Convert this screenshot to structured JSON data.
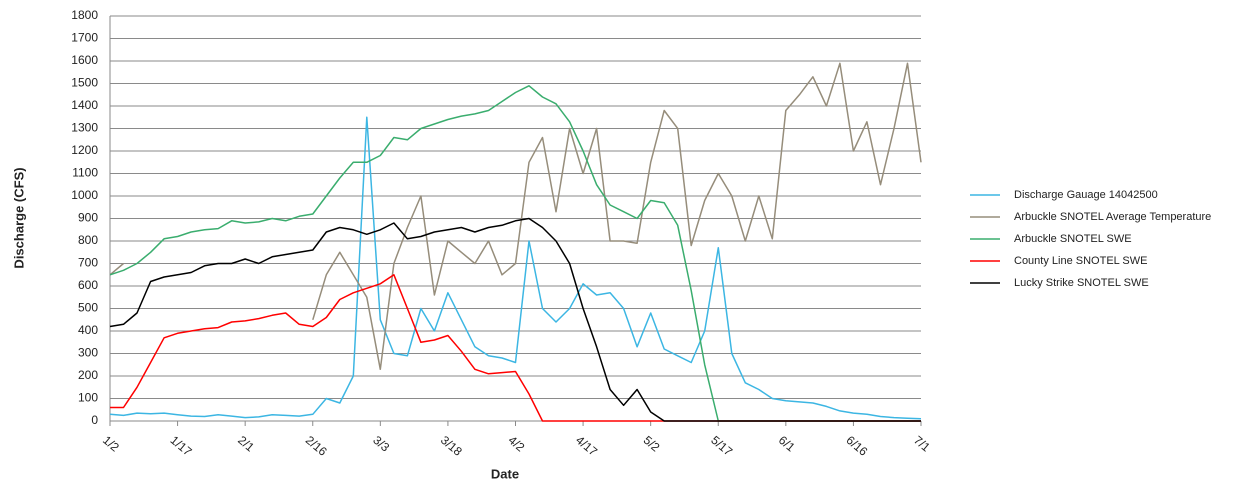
{
  "chart_data": {
    "type": "line",
    "x_label": "Date",
    "y_label": "Discharge (CFS)",
    "categories": [
      "1/2",
      null,
      null,
      null,
      null,
      "1/17",
      null,
      null,
      null,
      null,
      "2/1",
      null,
      null,
      null,
      null,
      "2/16",
      null,
      null,
      null,
      null,
      "3/3",
      null,
      null,
      null,
      null,
      "3/18",
      null,
      null,
      null,
      null,
      "4/2",
      null,
      null,
      null,
      null,
      "4/17",
      null,
      null,
      null,
      null,
      "5/2",
      null,
      null,
      null,
      null,
      "5/17",
      null,
      null,
      null,
      null,
      "6/1",
      null,
      null,
      null,
      null,
      "6/16",
      null,
      null,
      null,
      null,
      "7/1"
    ],
    "ylim": [
      0,
      1800
    ],
    "yticks": [
      0,
      100,
      200,
      300,
      400,
      500,
      600,
      700,
      800,
      900,
      1000,
      1100,
      1200,
      1300,
      1400,
      1500,
      1600,
      1700,
      1800
    ],
    "grid": true,
    "legend": "right",
    "series": [
      {
        "name": "Discharge Gauage 14042500",
        "color": "#3cb6e3",
        "values": [
          30,
          25,
          35,
          32,
          35,
          28,
          22,
          20,
          28,
          22,
          15,
          18,
          28,
          25,
          22,
          30,
          100,
          80,
          200,
          1350,
          450,
          300,
          290,
          500,
          400,
          570,
          450,
          330,
          290,
          280,
          260,
          800,
          500,
          440,
          500,
          610,
          560,
          570,
          500,
          330,
          480,
          320,
          290,
          260,
          400,
          770,
          300,
          170,
          140,
          100,
          90,
          85,
          80,
          65,
          45,
          35,
          30,
          20,
          15,
          12,
          10
        ]
      },
      {
        "name": "Arbuckle SNOTEL Average Temperature",
        "color": "#968d7b",
        "values": [
          650,
          700,
          null,
          null,
          null,
          null,
          null,
          null,
          null,
          null,
          null,
          null,
          null,
          null,
          null,
          450,
          650,
          750,
          650,
          550,
          230,
          700,
          860,
          1000,
          560,
          800,
          750,
          700,
          800,
          650,
          700,
          1150,
          1260,
          930,
          1300,
          1100,
          1300,
          800,
          800,
          790,
          1150,
          1380,
          1300,
          780,
          980,
          1100,
          1000,
          800,
          1000,
          810,
          1380,
          1450,
          1530,
          1400,
          1590,
          1200,
          1330,
          1050,
          1300,
          1590,
          1150
        ]
      },
      {
        "name": "Arbuckle SNOTEL SWE",
        "color": "#3aad6e",
        "values": [
          650,
          670,
          700,
          750,
          810,
          820,
          840,
          850,
          855,
          890,
          880,
          885,
          900,
          890,
          910,
          920,
          1000,
          1080,
          1150,
          1150,
          1180,
          1260,
          1250,
          1300,
          1320,
          1340,
          1355,
          1365,
          1380,
          1420,
          1460,
          1490,
          1440,
          1410,
          1330,
          1200,
          1050,
          960,
          930,
          900,
          980,
          970,
          870,
          580,
          250,
          0,
          0,
          0,
          0,
          0,
          0,
          0,
          0,
          0,
          0,
          0,
          0,
          0,
          0,
          0,
          0
        ]
      },
      {
        "name": "County Line SNOTEL SWE",
        "color": "#ff0000",
        "values": [
          60,
          60,
          150,
          260,
          370,
          390,
          400,
          410,
          415,
          440,
          445,
          455,
          470,
          480,
          430,
          420,
          460,
          540,
          570,
          590,
          610,
          650,
          500,
          350,
          360,
          380,
          310,
          230,
          210,
          215,
          220,
          120,
          0,
          0,
          0,
          0,
          0,
          0,
          0,
          0,
          0,
          0,
          0,
          0,
          0,
          0,
          0,
          0,
          0,
          0,
          0,
          0,
          0,
          0,
          0,
          0,
          0,
          0,
          0,
          0,
          0
        ]
      },
      {
        "name": "Lucky Strike SNOTEL SWE",
        "color": "#000000",
        "values": [
          420,
          430,
          480,
          620,
          640,
          650,
          660,
          690,
          700,
          700,
          720,
          700,
          730,
          740,
          750,
          760,
          840,
          860,
          850,
          830,
          850,
          880,
          810,
          820,
          840,
          850,
          860,
          840,
          860,
          870,
          890,
          900,
          860,
          800,
          700,
          500,
          330,
          140,
          70,
          140,
          40,
          0,
          0,
          0,
          0,
          0,
          0,
          0,
          0,
          0,
          0,
          0,
          0,
          0,
          0,
          0,
          0,
          0,
          0,
          0,
          0
        ]
      }
    ]
  }
}
